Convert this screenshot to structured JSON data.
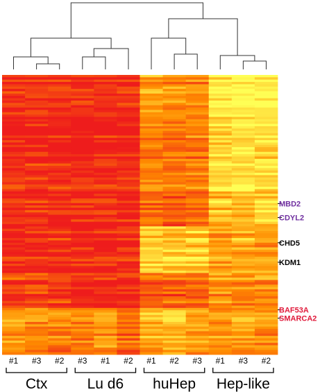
{
  "chart_data": {
    "type": "heatmap",
    "title": "",
    "color_scale": {
      "low": "#ee1c1c",
      "mid": "#ff8c00",
      "high": "#ffff55"
    },
    "columns": [
      {
        "group": "Ctx",
        "sample": "#1"
      },
      {
        "group": "Ctx",
        "sample": "#3"
      },
      {
        "group": "Ctx",
        "sample": "#2"
      },
      {
        "group": "Lu d6",
        "sample": "#3"
      },
      {
        "group": "Lu d6",
        "sample": "#1"
      },
      {
        "group": "Lu d6",
        "sample": "#2"
      },
      {
        "group": "huHep",
        "sample": "#1"
      },
      {
        "group": "huHep",
        "sample": "#2"
      },
      {
        "group": "huHep",
        "sample": "#3"
      },
      {
        "group": "Hep-like",
        "sample": "#1"
      },
      {
        "group": "Hep-like",
        "sample": "#3"
      },
      {
        "group": "Hep-like",
        "sample": "#2"
      }
    ],
    "groups": [
      "Ctx",
      "Lu d6",
      "huHep",
      "Hep-like"
    ],
    "row_bands": [
      {
        "rows": 25,
        "levels": [
          0.02,
          0.04,
          0.03,
          0.05,
          0.01,
          0.03,
          0.55,
          0.5,
          0.45,
          0.92,
          0.95,
          0.9
        ]
      },
      {
        "rows": 25,
        "levels": [
          0.06,
          0.08,
          0.05,
          0.04,
          0.07,
          0.06,
          0.45,
          0.4,
          0.42,
          0.85,
          0.88,
          0.83
        ]
      },
      {
        "rows": 15,
        "levels": [
          0.05,
          0.06,
          0.04,
          0.03,
          0.08,
          0.05,
          0.35,
          0.3,
          0.33,
          0.75,
          0.72,
          0.78
        ]
      },
      {
        "rows": 20,
        "levels": [
          0.05,
          0.04,
          0.06,
          0.03,
          0.02,
          0.04,
          0.8,
          0.75,
          0.78,
          0.6,
          0.62,
          0.58
        ]
      },
      {
        "rows": 15,
        "levels": [
          0.18,
          0.2,
          0.15,
          0.03,
          0.02,
          0.04,
          0.3,
          0.28,
          0.32,
          0.5,
          0.48,
          0.52
        ]
      },
      {
        "rows": 20,
        "levels": [
          0.55,
          0.5,
          0.45,
          0.4,
          0.6,
          0.35,
          0.65,
          0.7,
          0.6,
          0.55,
          0.58,
          0.5
        ]
      }
    ],
    "highlighted_genes": [
      {
        "name": "MBD2",
        "color": "#7030a0",
        "row_fraction": 0.46
      },
      {
        "name": "CDYL2",
        "color": "#7030a0",
        "row_fraction": 0.51
      },
      {
        "name": "CHD5",
        "color": "#000000",
        "row_fraction": 0.6
      },
      {
        "name": "KDM1",
        "color": "#000000",
        "row_fraction": 0.67
      },
      {
        "name": "BAF53A",
        "color": "#e0193a",
        "row_fraction": 0.84
      },
      {
        "name": "SMARCA2",
        "color": "#e0193a",
        "row_fraction": 0.87
      }
    ],
    "dendrogram": "hierarchical clustering of samples: Ctx and Lu d6 cluster together; huHep and Hep-like cluster together"
  }
}
